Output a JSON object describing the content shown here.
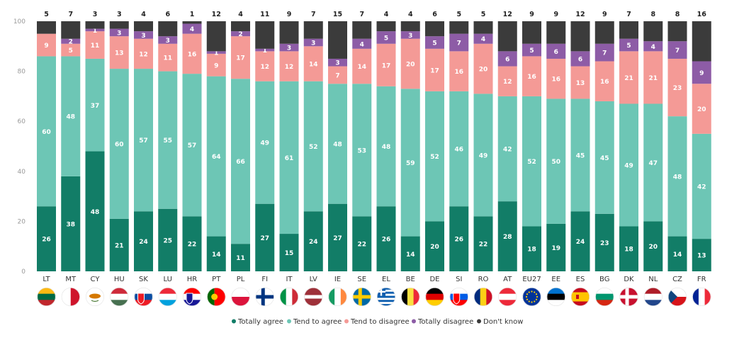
{
  "chart_data": {
    "type": "bar",
    "stacked": true,
    "title": "",
    "xlabel": "",
    "ylabel": "",
    "ylim": [
      0,
      100
    ],
    "yticks": [
      "0",
      "20",
      "40",
      "60",
      "80",
      "100"
    ],
    "categories": [
      "LT",
      "MT",
      "CY",
      "HU",
      "SK",
      "LU",
      "HR",
      "PT",
      "PL",
      "FI",
      "IT",
      "LV",
      "IE",
      "SE",
      "EL",
      "BE",
      "DE",
      "SI",
      "RO",
      "AT",
      "EU27",
      "EE",
      "ES",
      "BG",
      "DK",
      "NL",
      "CZ",
      "FR"
    ],
    "series": [
      {
        "name": "Totally agree",
        "color": "#127d67",
        "values": [
          26,
          38,
          48,
          21,
          24,
          25,
          22,
          14,
          11,
          27,
          15,
          24,
          27,
          22,
          26,
          14,
          20,
          26,
          22,
          28,
          18,
          19,
          24,
          23,
          18,
          20,
          14,
          13
        ]
      },
      {
        "name": "Tend to agree",
        "color": "#6dc6b5",
        "values": [
          60,
          48,
          37,
          60,
          57,
          55,
          57,
          64,
          66,
          49,
          61,
          52,
          48,
          53,
          48,
          59,
          52,
          46,
          49,
          42,
          52,
          50,
          45,
          45,
          49,
          47,
          48,
          42
        ]
      },
      {
        "name": "Tend to disagree",
        "color": "#f49a96",
        "values": [
          9,
          5,
          11,
          13,
          12,
          11,
          16,
          9,
          17,
          12,
          12,
          14,
          7,
          14,
          17,
          20,
          17,
          16,
          20,
          12,
          16,
          16,
          13,
          16,
          21,
          21,
          23,
          20
        ]
      },
      {
        "name": "Totally disagree",
        "color": "#8d5ca6",
        "values": [
          0,
          2,
          1,
          3,
          3,
          3,
          4,
          1,
          2,
          1,
          3,
          3,
          3,
          4,
          5,
          3,
          5,
          7,
          4,
          6,
          5,
          6,
          6,
          7,
          5,
          4,
          7,
          9
        ]
      },
      {
        "name": "Don't know",
        "color": "#3b3b3b",
        "values": [
          5,
          7,
          3,
          3,
          4,
          6,
          1,
          12,
          4,
          11,
          9,
          7,
          15,
          7,
          4,
          4,
          6,
          5,
          5,
          12,
          9,
          9,
          12,
          9,
          7,
          8,
          8,
          16
        ]
      }
    ],
    "segment_labels_shown": [
      [
        true,
        true,
        true,
        true,
        true
      ],
      [
        true,
        true,
        true,
        true,
        true
      ],
      [
        true,
        true,
        true,
        true,
        true
      ],
      [
        true,
        true,
        true,
        true,
        true
      ],
      [
        true,
        true,
        true,
        true,
        true
      ],
      [
        true,
        true,
        true,
        true,
        true
      ],
      [
        true,
        true,
        true,
        true,
        true
      ],
      [
        true,
        true,
        true,
        true,
        true
      ],
      [
        true,
        true,
        true,
        true,
        true
      ],
      [
        true,
        true,
        true,
        true,
        true
      ],
      [
        true,
        true,
        true,
        true,
        true
      ],
      [
        true,
        true,
        true,
        true,
        true
      ],
      [
        true,
        true,
        true,
        true,
        true
      ],
      [
        true,
        true,
        true,
        true,
        true
      ],
      [
        true,
        true,
        true,
        true,
        true
      ],
      [
        true,
        true,
        true,
        true,
        true
      ],
      [
        true,
        true,
        true,
        true,
        true
      ],
      [
        true,
        true,
        true,
        true,
        true
      ],
      [
        true,
        true,
        true,
        true,
        true
      ],
      [
        true,
        true,
        true,
        true,
        true
      ],
      [
        true,
        true,
        true,
        true,
        true
      ],
      [
        true,
        true,
        true,
        true,
        true
      ],
      [
        true,
        true,
        true,
        true,
        true
      ],
      [
        true,
        true,
        true,
        true,
        true
      ],
      [
        true,
        true,
        true,
        true,
        true
      ],
      [
        true,
        true,
        true,
        true,
        true
      ],
      [
        true,
        true,
        true,
        true,
        true
      ],
      [
        true,
        true,
        true,
        true,
        true
      ]
    ],
    "legend_position": "bottom-center",
    "grid": false
  },
  "legend": [
    {
      "label": "Totally agree",
      "color": "#127d67"
    },
    {
      "label": "Tend to agree",
      "color": "#6dc6b5"
    },
    {
      "label": "Tend to disagree",
      "color": "#f49a96"
    },
    {
      "label": "Totally disagree",
      "color": "#8d5ca6"
    },
    {
      "label": "Don't know",
      "color": "#3b3b3b"
    }
  ],
  "flags": [
    {
      "code": "LT",
      "name": "lithuania-flag-icon",
      "type": "h",
      "colors": [
        "#fdb913",
        "#006a44",
        "#c1272d"
      ]
    },
    {
      "code": "MT",
      "name": "malta-flag-icon",
      "type": "v",
      "colors": [
        "#ffffff",
        "#cf142b"
      ]
    },
    {
      "code": "CY",
      "name": "cyprus-flag-icon",
      "type": "cy",
      "colors": [
        "#ffffff",
        "#d57800"
      ]
    },
    {
      "code": "HU",
      "name": "hungary-flag-icon",
      "type": "h",
      "colors": [
        "#ce2939",
        "#ffffff",
        "#477050"
      ]
    },
    {
      "code": "SK",
      "name": "slovakia-flag-icon",
      "type": "hs",
      "colors": [
        "#ffffff",
        "#0b4ea2",
        "#ee1c25"
      ]
    },
    {
      "code": "LU",
      "name": "luxembourg-flag-icon",
      "type": "h",
      "colors": [
        "#ed2939",
        "#ffffff",
        "#00a1de"
      ]
    },
    {
      "code": "HR",
      "name": "croatia-flag-icon",
      "type": "hs",
      "colors": [
        "#ff0000",
        "#ffffff",
        "#171796"
      ]
    },
    {
      "code": "PT",
      "name": "portugal-flag-icon",
      "type": "pt",
      "colors": [
        "#006600",
        "#ff0000",
        "#ffcc00"
      ]
    },
    {
      "code": "PL",
      "name": "poland-flag-icon",
      "type": "h",
      "colors": [
        "#ffffff",
        "#dc143c"
      ]
    },
    {
      "code": "FI",
      "name": "finland-flag-icon",
      "type": "nordic",
      "colors": [
        "#ffffff",
        "#003580"
      ]
    },
    {
      "code": "IT",
      "name": "italy-flag-icon",
      "type": "v",
      "colors": [
        "#009246",
        "#ffffff",
        "#ce2b37"
      ]
    },
    {
      "code": "LV",
      "name": "latvia-flag-icon",
      "type": "lv",
      "colors": [
        "#9e3039",
        "#ffffff"
      ]
    },
    {
      "code": "IE",
      "name": "ireland-flag-icon",
      "type": "v",
      "colors": [
        "#169b62",
        "#ffffff",
        "#ff883e"
      ]
    },
    {
      "code": "SE",
      "name": "sweden-flag-icon",
      "type": "nordic",
      "colors": [
        "#006aa7",
        "#fecc00"
      ]
    },
    {
      "code": "EL",
      "name": "greece-flag-icon",
      "type": "gr",
      "colors": [
        "#0d5eaf",
        "#ffffff"
      ]
    },
    {
      "code": "BE",
      "name": "belgium-flag-icon",
      "type": "v",
      "colors": [
        "#000000",
        "#fae042",
        "#ed2939"
      ]
    },
    {
      "code": "DE",
      "name": "germany-flag-icon",
      "type": "h",
      "colors": [
        "#000000",
        "#dd0000",
        "#ffce00"
      ]
    },
    {
      "code": "SI",
      "name": "slovenia-flag-icon",
      "type": "hs",
      "colors": [
        "#ffffff",
        "#005ce6",
        "#ff0000"
      ]
    },
    {
      "code": "RO",
      "name": "romania-flag-icon",
      "type": "v",
      "colors": [
        "#002b7f",
        "#fcd116",
        "#ce1126"
      ]
    },
    {
      "code": "AT",
      "name": "austria-flag-icon",
      "type": "h",
      "colors": [
        "#ed2939",
        "#ffffff",
        "#ed2939"
      ]
    },
    {
      "code": "EU27",
      "name": "eu-flag-icon",
      "type": "eu",
      "colors": [
        "#003399",
        "#ffcc00"
      ]
    },
    {
      "code": "EE",
      "name": "estonia-flag-icon",
      "type": "h",
      "colors": [
        "#0072ce",
        "#000000",
        "#ffffff"
      ]
    },
    {
      "code": "ES",
      "name": "spain-flag-icon",
      "type": "es",
      "colors": [
        "#c60b1e",
        "#ffc400"
      ]
    },
    {
      "code": "BG",
      "name": "bulgaria-flag-icon",
      "type": "h",
      "colors": [
        "#ffffff",
        "#00966e",
        "#d62612"
      ]
    },
    {
      "code": "DK",
      "name": "denmark-flag-icon",
      "type": "nordic",
      "colors": [
        "#c8102e",
        "#ffffff"
      ]
    },
    {
      "code": "NL",
      "name": "netherlands-flag-icon",
      "type": "h",
      "colors": [
        "#ae1c28",
        "#ffffff",
        "#21468b"
      ]
    },
    {
      "code": "CZ",
      "name": "czechia-flag-icon",
      "type": "cz",
      "colors": [
        "#ffffff",
        "#d7141a",
        "#11457e"
      ]
    },
    {
      "code": "FR",
      "name": "france-flag-icon",
      "type": "v",
      "colors": [
        "#002395",
        "#ffffff",
        "#ed2939"
      ]
    }
  ]
}
